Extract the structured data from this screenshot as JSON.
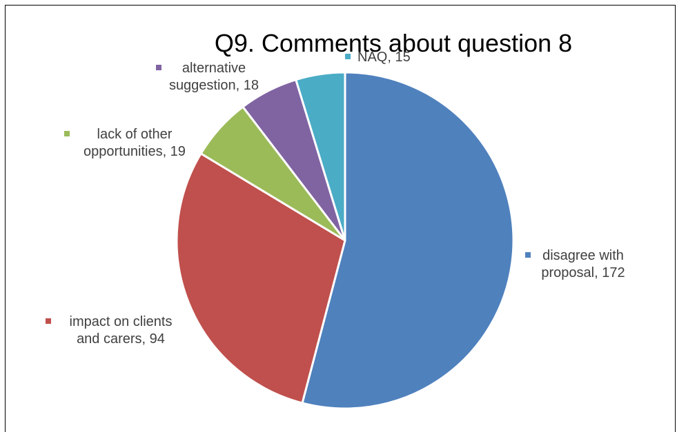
{
  "chart_data": {
    "type": "pie",
    "title": "Q9. Comments about question 8",
    "slices": [
      {
        "name": "disagree with proposal",
        "value": 172,
        "color": "#4F81BD",
        "label_lines": [
          "disagree with",
          "proposal, 172"
        ]
      },
      {
        "name": "impact on clients and carers",
        "value": 94,
        "color": "#C0504D",
        "label_lines": [
          "impact on clients",
          "and carers, 94"
        ]
      },
      {
        "name": "lack of other opportunities",
        "value": 19,
        "color": "#9BBB59",
        "label_lines": [
          "lack of other",
          "opportunities, 19"
        ]
      },
      {
        "name": "alternative suggestion",
        "value": 18,
        "color": "#8064A2",
        "label_lines": [
          "alternative",
          "suggestion, 18"
        ]
      },
      {
        "name": "NAQ",
        "value": 15,
        "color": "#4BACC6",
        "label_lines": [
          "NAQ, 15"
        ]
      }
    ]
  }
}
